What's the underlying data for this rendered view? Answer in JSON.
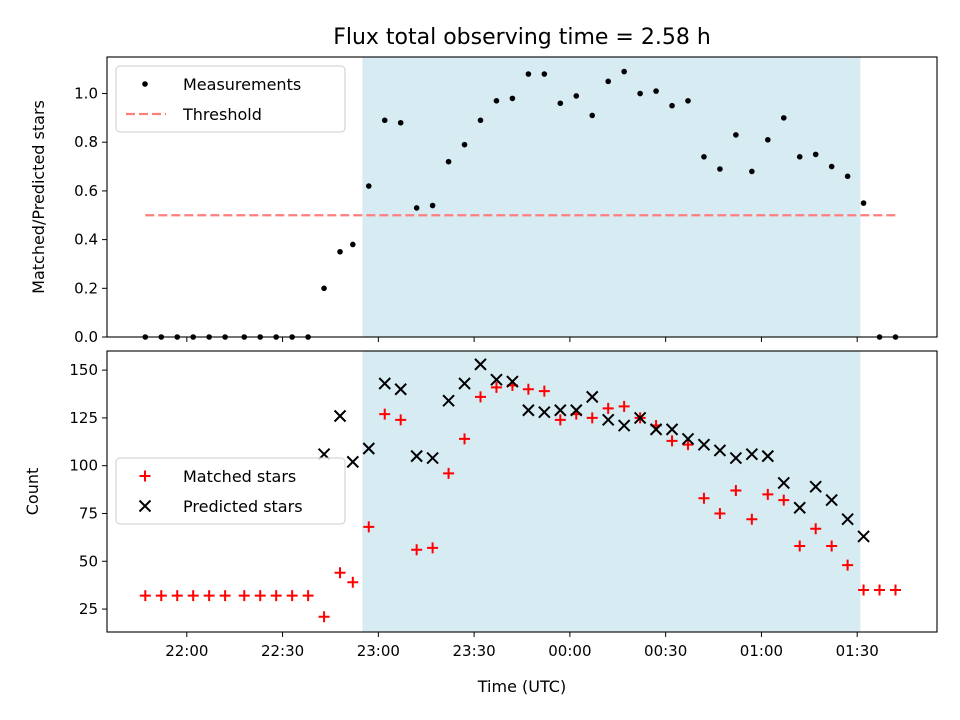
{
  "chart_data": [
    {
      "type": "scatter",
      "title": "Flux total observing time = 2.58 h",
      "xlabel": "",
      "ylabel": "Matched/Predicted stars",
      "xlim": [
        "21:35",
        "01:55"
      ],
      "ylim": [
        0,
        1.15
      ],
      "yticks": [
        0.0,
        0.2,
        0.4,
        0.6,
        0.8,
        1.0
      ],
      "ytick_labels": [
        "0.0",
        "0.2",
        "0.4",
        "0.6",
        "0.8",
        "1.0"
      ],
      "grid": false,
      "legend": "top-left",
      "shaded_span": [
        "22:55",
        "01:31"
      ],
      "series": [
        {
          "name": "Measurements",
          "style": "dot",
          "color": "#000000",
          "points": [
            [
              "21:47",
              0
            ],
            [
              "21:52",
              0
            ],
            [
              "21:57",
              0
            ],
            [
              "22:02",
              0
            ],
            [
              "22:07",
              0
            ],
            [
              "22:12",
              0
            ],
            [
              "22:18",
              0
            ],
            [
              "22:23",
              0
            ],
            [
              "22:28",
              0
            ],
            [
              "22:33",
              0
            ],
            [
              "22:38",
              0
            ],
            [
              "22:43",
              0.2
            ],
            [
              "22:48",
              0.35
            ],
            [
              "22:52",
              0.38
            ],
            [
              "22:57",
              0.62
            ],
            [
              "23:02",
              0.89
            ],
            [
              "23:07",
              0.88
            ],
            [
              "23:12",
              0.53
            ],
            [
              "23:17",
              0.54
            ],
            [
              "23:22",
              0.72
            ],
            [
              "23:27",
              0.79
            ],
            [
              "23:32",
              0.89
            ],
            [
              "23:37",
              0.97
            ],
            [
              "23:42",
              0.98
            ],
            [
              "23:47",
              1.08
            ],
            [
              "23:52",
              1.08
            ],
            [
              "23:57",
              0.96
            ],
            [
              "00:02",
              0.99
            ],
            [
              "00:07",
              0.91
            ],
            [
              "00:12",
              1.05
            ],
            [
              "00:17",
              1.09
            ],
            [
              "00:22",
              1.0
            ],
            [
              "00:27",
              1.01
            ],
            [
              "00:32",
              0.95
            ],
            [
              "00:37",
              0.97
            ],
            [
              "00:42",
              0.74
            ],
            [
              "00:47",
              0.69
            ],
            [
              "00:52",
              0.83
            ],
            [
              "00:57",
              0.68
            ],
            [
              "01:02",
              0.81
            ],
            [
              "01:07",
              0.9
            ],
            [
              "01:12",
              0.74
            ],
            [
              "01:17",
              0.75
            ],
            [
              "01:22",
              0.7
            ],
            [
              "01:27",
              0.66
            ],
            [
              "01:32",
              0.55
            ],
            [
              "01:37",
              0
            ],
            [
              "01:42",
              0
            ]
          ]
        },
        {
          "name": "Threshold",
          "style": "dashed-line",
          "color": "#ff7f7f",
          "points": [
            [
              "21:47",
              0.5
            ],
            [
              "01:42",
              0.5
            ]
          ]
        }
      ]
    },
    {
      "type": "scatter",
      "title": "",
      "xlabel": "Time (UTC)",
      "ylabel": "Count",
      "xlim": [
        "21:35",
        "01:55"
      ],
      "ylim": [
        13,
        160
      ],
      "xticks": [
        "22:00",
        "22:30",
        "23:00",
        "23:30",
        "00:00",
        "00:30",
        "01:00",
        "01:30"
      ],
      "yticks": [
        25,
        50,
        75,
        100,
        125,
        150
      ],
      "ytick_labels": [
        "25",
        "50",
        "75",
        "100",
        "125",
        "150"
      ],
      "grid": false,
      "legend": "center-left",
      "shaded_span": [
        "22:55",
        "01:31"
      ],
      "series": [
        {
          "name": "Matched stars",
          "marker": "+",
          "color": "#ff0000",
          "points": [
            [
              "21:47",
              32
            ],
            [
              "21:52",
              32
            ],
            [
              "21:57",
              32
            ],
            [
              "22:02",
              32
            ],
            [
              "22:07",
              32
            ],
            [
              "22:12",
              32
            ],
            [
              "22:18",
              32
            ],
            [
              "22:23",
              32
            ],
            [
              "22:28",
              32
            ],
            [
              "22:33",
              32
            ],
            [
              "22:38",
              32
            ],
            [
              "22:43",
              21
            ],
            [
              "22:48",
              44
            ],
            [
              "22:52",
              39
            ],
            [
              "22:57",
              68
            ],
            [
              "23:02",
              127
            ],
            [
              "23:07",
              124
            ],
            [
              "23:12",
              56
            ],
            [
              "23:17",
              57
            ],
            [
              "23:22",
              96
            ],
            [
              "23:27",
              114
            ],
            [
              "23:32",
              136
            ],
            [
              "23:37",
              141
            ],
            [
              "23:42",
              142
            ],
            [
              "23:47",
              140
            ],
            [
              "23:52",
              139
            ],
            [
              "23:57",
              124
            ],
            [
              "00:02",
              127
            ],
            [
              "00:07",
              125
            ],
            [
              "00:12",
              130
            ],
            [
              "00:17",
              131
            ],
            [
              "00:22",
              125
            ],
            [
              "00:27",
              121
            ],
            [
              "00:32",
              113
            ],
            [
              "00:37",
              111
            ],
            [
              "00:42",
              83
            ],
            [
              "00:47",
              75
            ],
            [
              "00:52",
              87
            ],
            [
              "00:57",
              72
            ],
            [
              "01:02",
              85
            ],
            [
              "01:07",
              82
            ],
            [
              "01:12",
              58
            ],
            [
              "01:17",
              67
            ],
            [
              "01:22",
              58
            ],
            [
              "01:27",
              48
            ],
            [
              "01:32",
              35
            ],
            [
              "01:37",
              35
            ],
            [
              "01:42",
              35
            ]
          ]
        },
        {
          "name": "Predicted stars",
          "marker": "x",
          "color": "#000000",
          "points": [
            [
              "22:43",
              106
            ],
            [
              "22:48",
              126
            ],
            [
              "22:52",
              102
            ],
            [
              "22:57",
              109
            ],
            [
              "23:02",
              143
            ],
            [
              "23:07",
              140
            ],
            [
              "23:12",
              105
            ],
            [
              "23:17",
              104
            ],
            [
              "23:22",
              134
            ],
            [
              "23:27",
              143
            ],
            [
              "23:32",
              153
            ],
            [
              "23:37",
              145
            ],
            [
              "23:42",
              144
            ],
            [
              "23:47",
              129
            ],
            [
              "23:52",
              128
            ],
            [
              "23:57",
              129
            ],
            [
              "00:02",
              129
            ],
            [
              "00:07",
              136
            ],
            [
              "00:12",
              124
            ],
            [
              "00:17",
              121
            ],
            [
              "00:22",
              125
            ],
            [
              "00:27",
              119
            ],
            [
              "00:32",
              119
            ],
            [
              "00:37",
              114
            ],
            [
              "00:42",
              111
            ],
            [
              "00:47",
              108
            ],
            [
              "00:52",
              104
            ],
            [
              "00:57",
              106
            ],
            [
              "01:02",
              105
            ],
            [
              "01:07",
              91
            ],
            [
              "01:12",
              78
            ],
            [
              "01:17",
              89
            ],
            [
              "01:22",
              82
            ],
            [
              "01:27",
              72
            ],
            [
              "01:32",
              63
            ]
          ]
        }
      ]
    }
  ]
}
